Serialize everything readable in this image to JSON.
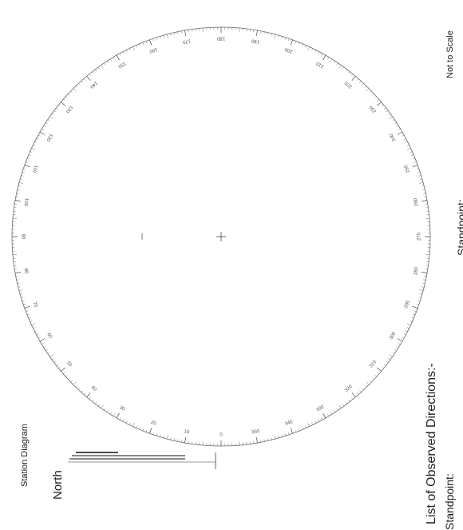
{
  "labels": {
    "not_to_scale": "Not to Scale",
    "station_diagram": "Station Diagram",
    "north": "North",
    "list_heading": "List of Observed Directions:-",
    "standpoint_left": "Standpoint:",
    "standpoint_right": "Standpoint:"
  },
  "dial": {
    "degree_labels": [
      "0",
      "10",
      "20",
      "30",
      "40",
      "50",
      "60",
      "70",
      "80",
      "90",
      "100",
      "110",
      "120",
      "130",
      "140",
      "150",
      "160",
      "170",
      "180",
      "190",
      "200",
      "210",
      "220",
      "230",
      "240",
      "250",
      "260",
      "270",
      "280",
      "290",
      "300",
      "310",
      "320",
      "330",
      "340",
      "350"
    ]
  },
  "colors": {
    "ink": "#1c1c1c",
    "paper": "#ffffff"
  }
}
